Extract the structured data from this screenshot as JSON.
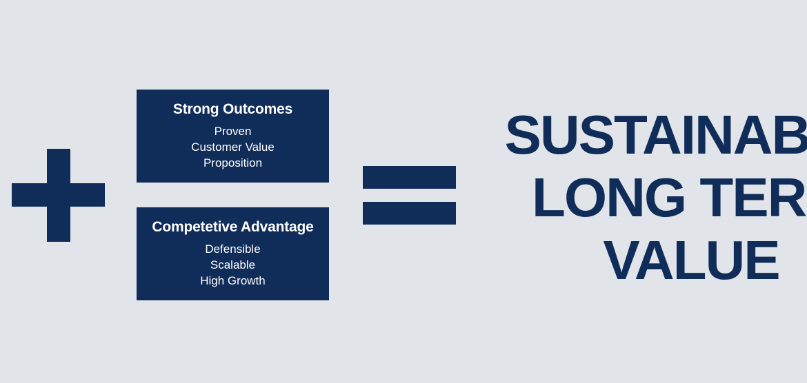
{
  "colors": {
    "background": "#e1e5e9",
    "shape_fill": "#102d59",
    "card_text": "#ffffff",
    "result_text": "#102d59"
  },
  "operators": {
    "plus": "plus-symbol",
    "equals": "equals-symbol"
  },
  "cards": [
    {
      "title": "Strong Outcomes",
      "lines": [
        "Proven",
        "Customer Value",
        "Proposition"
      ]
    },
    {
      "title": "Competetive Advantage",
      "lines": [
        "Defensible",
        "Scalable",
        "High Growth"
      ]
    }
  ],
  "result": {
    "lines": [
      "SUSTAINABLE",
      "LONG TERM",
      "VALUE"
    ]
  }
}
